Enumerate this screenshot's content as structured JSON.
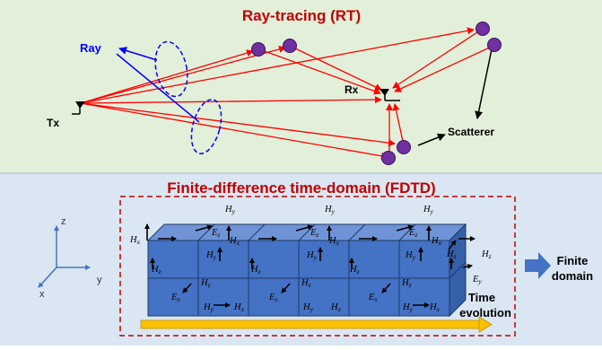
{
  "rt_panel": {
    "title": "Ray-tracing (RT)",
    "ray_label": "Ray",
    "tx_label": "Tx",
    "rx_label": "Rx",
    "scatterer_label": "Scatterer"
  },
  "fdtd_panel": {
    "title": "Finite-difference time-domain (FDTD)",
    "axes": {
      "x": "x",
      "y": "y",
      "z": "z"
    },
    "field_labels": {
      "Hx": {
        "base": "H",
        "sub": "x"
      },
      "Hy": {
        "base": "H",
        "sub": "y"
      },
      "Hz": {
        "base": "H",
        "sub": "z"
      },
      "Ex": {
        "base": "E",
        "sub": "x"
      },
      "Ey": {
        "base": "E",
        "sub": "y"
      },
      "Ez": {
        "base": "E",
        "sub": "z"
      }
    },
    "finite_domain_line1": "Finite",
    "finite_domain_line2": "domain",
    "time_evolution_line1": "Time",
    "time_evolution_line2": "evolution"
  },
  "colors": {
    "rt_background": "#e2efd9",
    "fdtd_background": "#dae6f2",
    "title_red": "#c00000",
    "ray_red": "#ff0000",
    "ray_blue": "#0000ff",
    "scatterer_purple": "#7030a0",
    "cube_blue": "#4472c4",
    "arrow_blue": "#4472c4",
    "time_arrow": "#ffc000"
  }
}
